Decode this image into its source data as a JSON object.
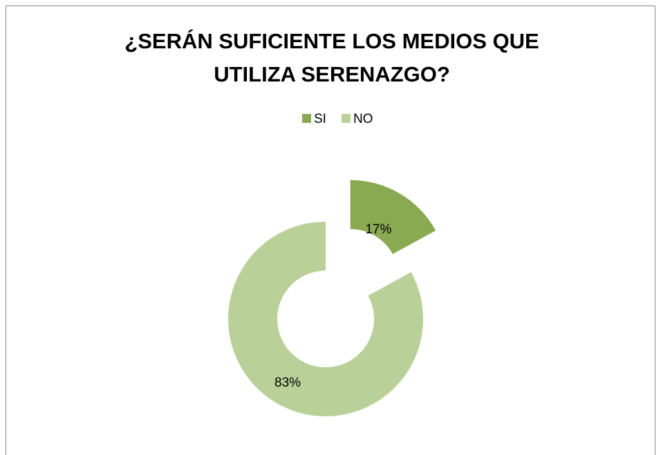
{
  "chart_data": {
    "type": "donut",
    "title": [
      "¿SERÁN SUFICIENTE LOS MEDIOS QUE",
      "UTILIZA SERENAZGO?"
    ],
    "categories": [
      "SI",
      "NO"
    ],
    "values": [
      17,
      83
    ],
    "value_labels": [
      "17%",
      "83%"
    ],
    "colors": [
      "#8aaa52",
      "#b9d198"
    ],
    "legend": "top"
  }
}
